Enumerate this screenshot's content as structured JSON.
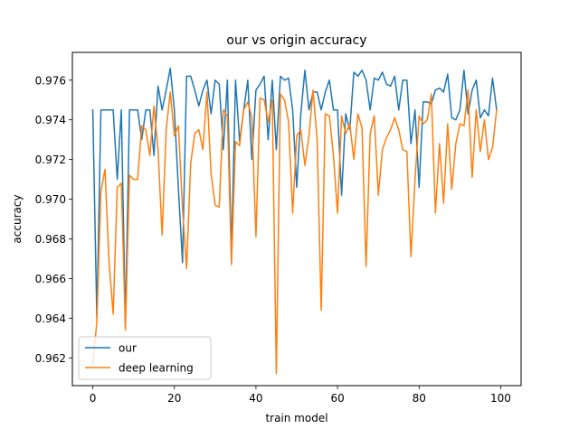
{
  "chart_data": {
    "type": "line",
    "title": "our vs origin accuracy",
    "xlabel": "train model",
    "ylabel": "accuracy",
    "xlim": [
      -5,
      105
    ],
    "ylim": [
      0.9606,
      0.9774
    ],
    "xticks": [
      0,
      20,
      40,
      60,
      80,
      100
    ],
    "xtick_labels": [
      "0",
      "20",
      "40",
      "60",
      "80",
      "100"
    ],
    "yticks": [
      0.962,
      0.964,
      0.966,
      0.968,
      0.97,
      0.972,
      0.974,
      0.976
    ],
    "ytick_labels": [
      "0.962",
      "0.964",
      "0.966",
      "0.968",
      "0.970",
      "0.972",
      "0.974",
      "0.976"
    ],
    "grid": false,
    "legend_position": "lower-left",
    "x": [
      0,
      1,
      2,
      3,
      4,
      5,
      6,
      7,
      8,
      9,
      10,
      11,
      12,
      13,
      14,
      15,
      16,
      17,
      18,
      19,
      20,
      21,
      22,
      23,
      24,
      25,
      26,
      27,
      28,
      29,
      30,
      31,
      32,
      33,
      34,
      35,
      36,
      37,
      38,
      39,
      40,
      41,
      42,
      43,
      44,
      45,
      46,
      47,
      48,
      49,
      50,
      51,
      52,
      53,
      54,
      55,
      56,
      57,
      58,
      59,
      60,
      61,
      62,
      63,
      64,
      65,
      66,
      67,
      68,
      69,
      70,
      71,
      72,
      73,
      74,
      75,
      76,
      77,
      78,
      79,
      80,
      81,
      82,
      83,
      84,
      85,
      86,
      87,
      88,
      89,
      90,
      91,
      92,
      93,
      94,
      95,
      96,
      97,
      98,
      99
    ],
    "series": [
      {
        "name": "our",
        "color": "#1f77b4",
        "values": [
          0.9745,
          0.964,
          0.9745,
          0.9745,
          0.9745,
          0.9745,
          0.971,
          0.9745,
          0.9637,
          0.9745,
          0.9745,
          0.9745,
          0.973,
          0.9745,
          0.9745,
          0.9722,
          0.9757,
          0.9745,
          0.9755,
          0.9766,
          0.9745,
          0.9705,
          0.9668,
          0.9762,
          0.9762,
          0.9755,
          0.9747,
          0.9755,
          0.976,
          0.9743,
          0.976,
          0.9758,
          0.9725,
          0.976,
          0.9672,
          0.976,
          0.9729,
          0.9745,
          0.976,
          0.972,
          0.9755,
          0.9758,
          0.9762,
          0.973,
          0.976,
          0.9725,
          0.9762,
          0.976,
          0.9761,
          0.9745,
          0.9706,
          0.9743,
          0.9765,
          0.9745,
          0.9754,
          0.9754,
          0.9745,
          0.9754,
          0.976,
          0.9745,
          0.9745,
          0.9702,
          0.9743,
          0.9735,
          0.9764,
          0.9762,
          0.9765,
          0.976,
          0.9745,
          0.9761,
          0.976,
          0.9764,
          0.9758,
          0.9757,
          0.9762,
          0.9745,
          0.976,
          0.976,
          0.9728,
          0.9745,
          0.9706,
          0.9749,
          0.9749,
          0.9748,
          0.9755,
          0.9756,
          0.9754,
          0.9763,
          0.9741,
          0.974,
          0.9745,
          0.9765,
          0.9743,
          0.9755,
          0.976,
          0.9741,
          0.9745,
          0.9742,
          0.9761,
          0.9745
        ]
      },
      {
        "name": "deep learning",
        "color": "#ff7f0e",
        "values": [
          0.9617,
          0.9638,
          0.9704,
          0.9715,
          0.9668,
          0.9642,
          0.9706,
          0.9708,
          0.9634,
          0.9712,
          0.971,
          0.971,
          0.9737,
          0.9735,
          0.9722,
          0.9747,
          0.9725,
          0.9682,
          0.9735,
          0.9754,
          0.9732,
          0.9737,
          0.9695,
          0.9665,
          0.9718,
          0.9733,
          0.9735,
          0.9725,
          0.9754,
          0.9713,
          0.9697,
          0.9696,
          0.9745,
          0.9742,
          0.9667,
          0.9729,
          0.9727,
          0.9745,
          0.9749,
          0.9741,
          0.9681,
          0.9751,
          0.975,
          0.9739,
          0.975,
          0.9612,
          0.9753,
          0.975,
          0.9739,
          0.9693,
          0.9732,
          0.9735,
          0.9717,
          0.9732,
          0.9755,
          0.973,
          0.9644,
          0.9743,
          0.9742,
          0.9722,
          0.9693,
          0.9742,
          0.9733,
          0.9738,
          0.972,
          0.9743,
          0.9736,
          0.9666,
          0.9733,
          0.9742,
          0.9702,
          0.9725,
          0.9731,
          0.9735,
          0.9741,
          0.9735,
          0.9725,
          0.9724,
          0.9671,
          0.971,
          0.9742,
          0.9738,
          0.974,
          0.9753,
          0.9693,
          0.9728,
          0.9698,
          0.9738,
          0.9705,
          0.9728,
          0.9738,
          0.9737,
          0.9755,
          0.9711,
          0.9745,
          0.9724,
          0.974,
          0.972,
          0.9726,
          0.9745
        ]
      }
    ]
  }
}
